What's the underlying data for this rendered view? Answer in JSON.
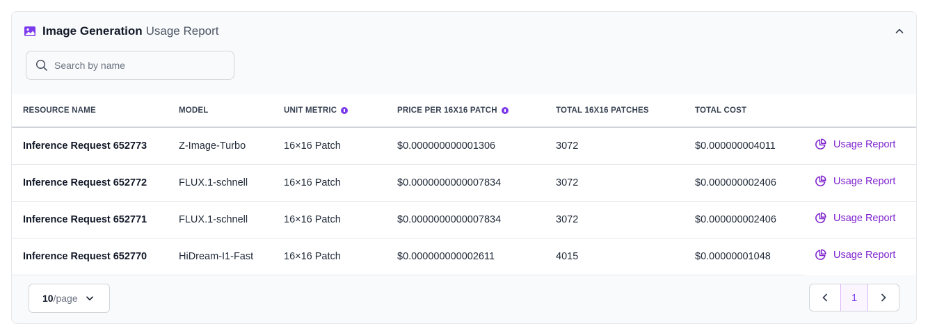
{
  "header": {
    "title_strong": "Image Generation",
    "title_soft": "Usage Report",
    "icon": "image-icon",
    "accent_color": "#7c3aed"
  },
  "search": {
    "placeholder": "Search by name"
  },
  "table": {
    "columns": [
      "RESOURCE NAME",
      "MODEL",
      "UNIT METRIC",
      "PRICE PER 16X16 PATCH",
      "TOTAL 16X16 PATCHES",
      "TOTAL COST"
    ],
    "rows": [
      {
        "name": "Inference Request 652773",
        "model": "Z-Image-Turbo",
        "unit": "16×16 Patch",
        "price": "$0.000000000001306",
        "patches": "3072",
        "cost": "$0.000000004011",
        "action": "Usage Report"
      },
      {
        "name": "Inference Request 652772",
        "model": "FLUX.1-schnell",
        "unit": "16×16 Patch",
        "price": "$0.0000000000007834",
        "patches": "3072",
        "cost": "$0.000000002406",
        "action": "Usage Report"
      },
      {
        "name": "Inference Request 652771",
        "model": "FLUX.1-schnell",
        "unit": "16×16 Patch",
        "price": "$0.0000000000007834",
        "patches": "3072",
        "cost": "$0.000000002406",
        "action": "Usage Report"
      },
      {
        "name": "Inference Request 652770",
        "model": "HiDream-I1-Fast",
        "unit": "16×16 Patch",
        "price": "$0.000000000002611",
        "patches": "4015",
        "cost": "$0.00000001048",
        "action": "Usage Report"
      }
    ]
  },
  "pagination": {
    "page_size": "10",
    "page_size_suffix": "/page",
    "current_page": "1"
  }
}
